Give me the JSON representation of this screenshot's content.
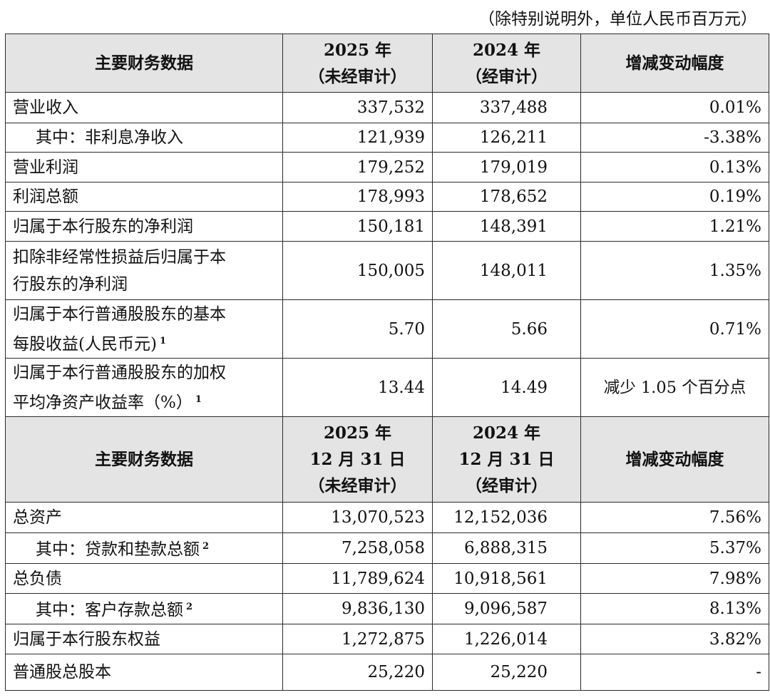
{
  "unit_note": "（除特别说明外，单位人民币百万元）",
  "header1": {
    "col1": "主要财务数据",
    "col2_line1": "2025 年",
    "col2_line2": "（未经审计）",
    "col3_line1": "2024 年",
    "col3_line2": "（经审计）",
    "col4": "增减变动幅度"
  },
  "section1": [
    {
      "label": "营业收入",
      "v2025": "337,532",
      "v2024": "337,488",
      "change": "0.01%"
    },
    {
      "label": "其中：非利息净收入",
      "v2025": "121,939",
      "v2024": "126,211",
      "change": "-3.38%"
    },
    {
      "label": "营业利润",
      "v2025": "179,252",
      "v2024": "179,019",
      "change": "0.13%"
    },
    {
      "label": "利润总额",
      "v2025": "178,993",
      "v2024": "178,652",
      "change": "0.19%"
    },
    {
      "label": "归属于本行股东的净利润",
      "v2025": "150,181",
      "v2024": "148,391",
      "change": "1.21%"
    },
    {
      "label_line1": "扣除非经常性损益后归属于本",
      "label_line2": "行股东的净利润",
      "v2025": "150,005",
      "v2024": "148,011",
      "change": "1.35%"
    },
    {
      "label_line1": "归属于本行普通股股东的基本",
      "label_line2": "每股收益(人民币元)",
      "note": "1",
      "v2025": "5.70",
      "v2024": "5.66",
      "change": "0.71%"
    },
    {
      "label_line1": "归属于本行普通股股东的加权",
      "label_line2": "平均净资产收益率（%）",
      "note": "1",
      "v2025": "13.44",
      "v2024": "14.49",
      "change": "减少 1.05 个百分点"
    }
  ],
  "header2": {
    "col1": "主要财务数据",
    "col2_line1": "2025 年",
    "col2_line2": "12 月 31 日",
    "col2_line3": "（未经审计）",
    "col3_line1": "2024 年",
    "col3_line2": "12 月 31 日",
    "col3_line3": "（经审计）",
    "col4": "增减变动幅度"
  },
  "section2": [
    {
      "label": "总资产",
      "v2025": "13,070,523",
      "v2024": "12,152,036",
      "change": "7.56%"
    },
    {
      "label": "其中：贷款和垫款总额",
      "note": "2",
      "v2025": "7,258,058",
      "v2024": "6,888,315",
      "change": "5.37%"
    },
    {
      "label": "总负债",
      "v2025": "11,789,624",
      "v2024": "10,918,561",
      "change": "7.98%"
    },
    {
      "label": "其中：客户存款总额",
      "note": "2",
      "v2025": "9,836,130",
      "v2024": "9,096,587",
      "change": "8.13%"
    },
    {
      "label": "归属于本行股东权益",
      "v2025": "1,272,875",
      "v2024": "1,226,014",
      "change": "3.82%"
    },
    {
      "label": "普通股总股本",
      "v2025": "25,220",
      "v2024": "25,220",
      "change": "-"
    }
  ]
}
